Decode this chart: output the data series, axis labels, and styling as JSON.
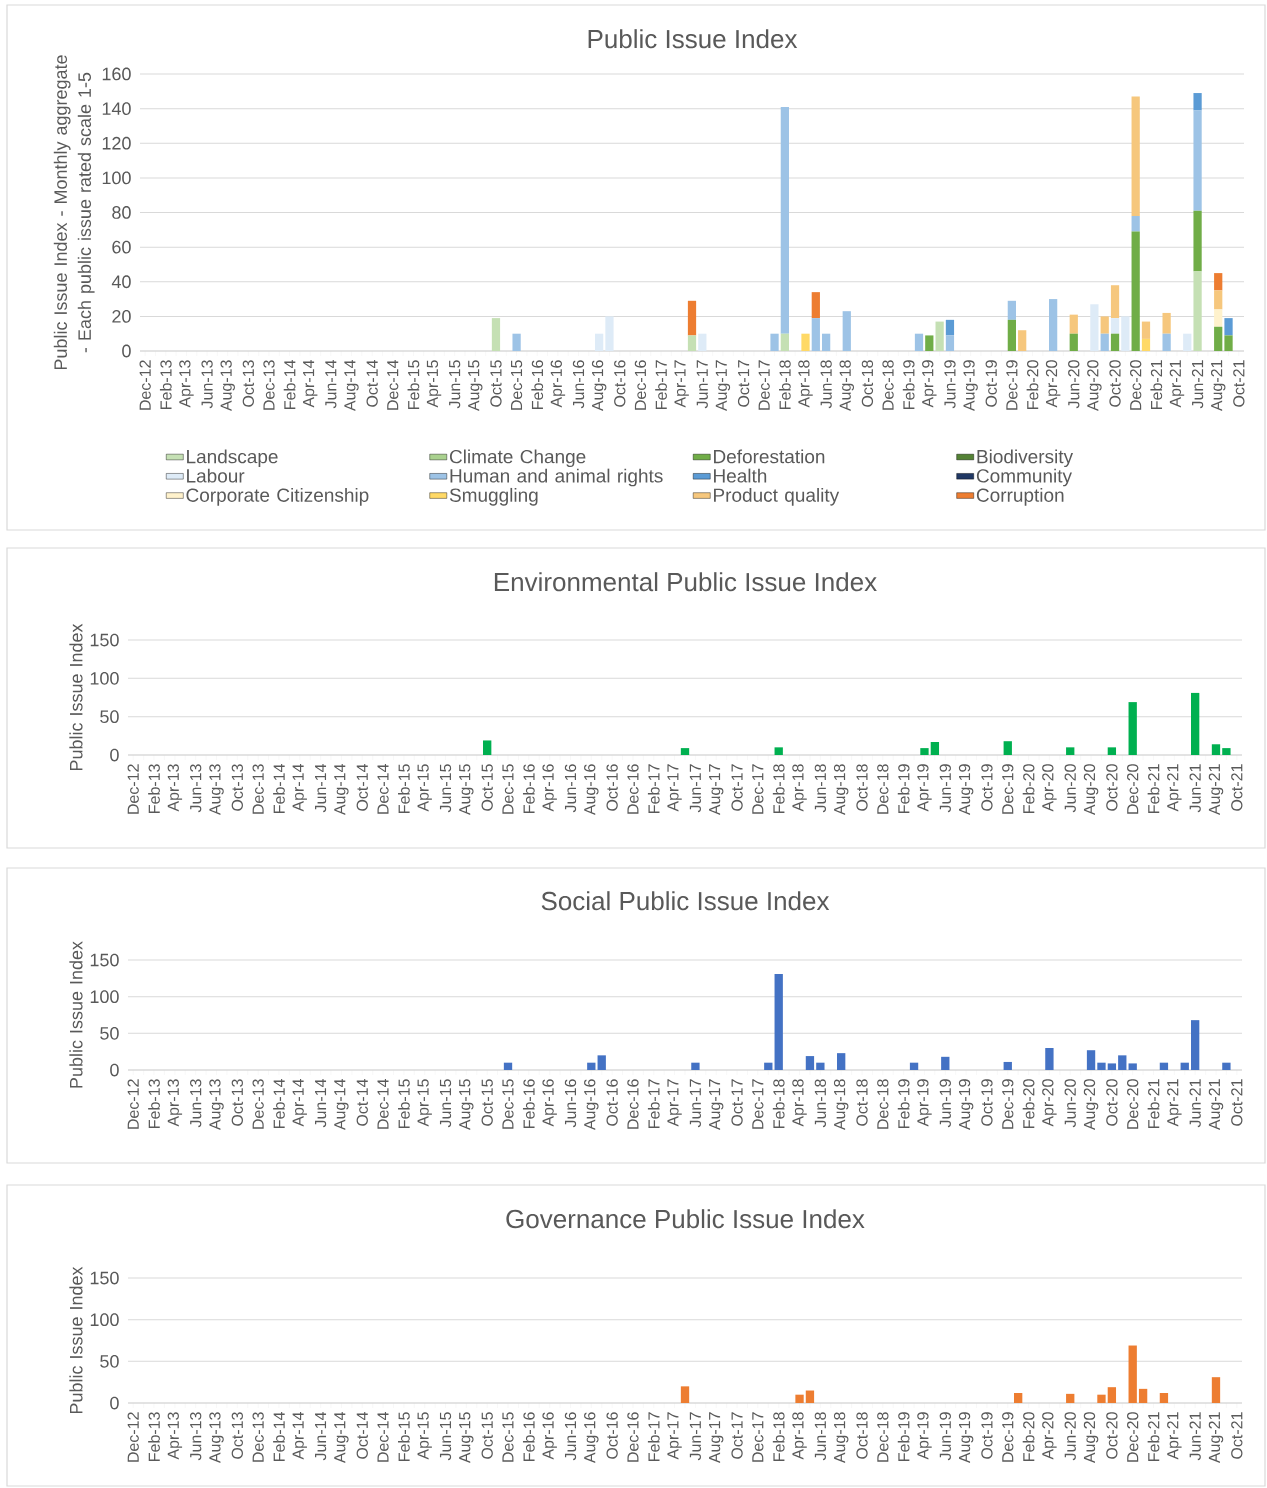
{
  "chart_data": [
    {
      "type": "bar",
      "title": "Public Issue Index",
      "ylabel": "Public Issue Index - Monthly aggregate - Each public issue rated scale 1-5",
      "stacked": true,
      "grid": "y",
      "legend": "bottom",
      "ylim": [
        0,
        160
      ],
      "yticks": [
        0,
        20,
        40,
        60,
        80,
        100,
        120,
        140,
        160
      ],
      "categories": [
        "Dec-12",
        null,
        "Feb-13",
        null,
        "Apr-13",
        null,
        "Jun-13",
        null,
        "Aug-13",
        null,
        "Oct-13",
        null,
        "Dec-13",
        null,
        "Feb-14",
        null,
        "Apr-14",
        null,
        "Jun-14",
        null,
        "Aug-14",
        null,
        "Oct-14",
        null,
        "Dec-14",
        null,
        "Feb-15",
        null,
        "Apr-15",
        null,
        "Jun-15",
        null,
        "Aug-15",
        null,
        "Oct-15",
        null,
        "Dec-15",
        null,
        "Feb-16",
        null,
        "Apr-16",
        null,
        "Jun-16",
        null,
        "Aug-16",
        null,
        "Oct-16",
        null,
        "Dec-16",
        null,
        "Feb-17",
        null,
        "Apr-17",
        null,
        "Jun-17",
        null,
        "Aug-17",
        null,
        "Oct-17",
        null,
        "Dec-17",
        null,
        "Feb-18",
        null,
        "Apr-18",
        null,
        "Jun-18",
        null,
        "Aug-18",
        null,
        "Oct-18",
        null,
        "Dec-18",
        null,
        "Feb-19",
        null,
        "Apr-19",
        null,
        "Jun-19",
        null,
        "Aug-19",
        null,
        "Oct-19",
        null,
        "Dec-19",
        null,
        "Feb-20",
        null,
        "Apr-20",
        null,
        "Jun-20",
        null,
        "Aug-20",
        null,
        "Oct-20",
        null,
        "Dec-20",
        null,
        "Feb-21",
        null,
        "Apr-21",
        null,
        "Jun-21",
        null,
        "Aug-21",
        null,
        "Oct-21"
      ],
      "series": [
        {
          "name": "Landscape",
          "color": "#c5e0b4",
          "values": [
            0,
            0,
            0,
            0,
            0,
            0,
            0,
            0,
            0,
            0,
            0,
            0,
            0,
            0,
            0,
            0,
            0,
            0,
            0,
            0,
            0,
            0,
            0,
            0,
            0,
            0,
            0,
            0,
            0,
            0,
            0,
            0,
            0,
            0,
            19,
            0,
            0,
            0,
            0,
            0,
            0,
            0,
            0,
            0,
            0,
            0,
            0,
            0,
            0,
            0,
            0,
            0,
            0,
            9,
            0,
            0,
            0,
            0,
            0,
            0,
            0,
            0,
            10,
            0,
            0,
            0,
            0,
            0,
            0,
            0,
            0,
            0,
            0,
            0,
            0,
            0,
            0,
            17,
            0,
            0,
            0,
            0,
            0,
            0,
            0,
            0,
            0,
            0,
            0,
            0,
            0,
            0,
            0,
            0,
            0,
            0,
            0,
            0,
            0,
            0,
            0,
            0,
            46,
            0,
            0,
            0,
            0
          ]
        },
        {
          "name": "Climate Change",
          "color": "#a9d18e",
          "values": [
            0,
            0,
            0,
            0,
            0,
            0,
            0,
            0,
            0,
            0,
            0,
            0,
            0,
            0,
            0,
            0,
            0,
            0,
            0,
            0,
            0,
            0,
            0,
            0,
            0,
            0,
            0,
            0,
            0,
            0,
            0,
            0,
            0,
            0,
            0,
            0,
            0,
            0,
            0,
            0,
            0,
            0,
            0,
            0,
            0,
            0,
            0,
            0,
            0,
            0,
            0,
            0,
            0,
            0,
            0,
            0,
            0,
            0,
            0,
            0,
            0,
            0,
            0,
            0,
            0,
            0,
            0,
            0,
            0,
            0,
            0,
            0,
            0,
            0,
            0,
            0,
            0,
            0,
            0,
            0,
            0,
            0,
            0,
            0,
            0,
            0,
            0,
            0,
            0,
            0,
            0,
            0,
            0,
            0,
            0,
            0,
            0,
            0,
            0,
            0,
            0,
            0,
            0,
            0,
            0,
            0,
            0
          ]
        },
        {
          "name": "Deforestation",
          "color": "#70ad47",
          "values": [
            0,
            0,
            0,
            0,
            0,
            0,
            0,
            0,
            0,
            0,
            0,
            0,
            0,
            0,
            0,
            0,
            0,
            0,
            0,
            0,
            0,
            0,
            0,
            0,
            0,
            0,
            0,
            0,
            0,
            0,
            0,
            0,
            0,
            0,
            0,
            0,
            0,
            0,
            0,
            0,
            0,
            0,
            0,
            0,
            0,
            0,
            0,
            0,
            0,
            0,
            0,
            0,
            0,
            0,
            0,
            0,
            0,
            0,
            0,
            0,
            0,
            0,
            0,
            0,
            0,
            0,
            0,
            0,
            0,
            0,
            0,
            0,
            0,
            0,
            0,
            0,
            9,
            0,
            0,
            0,
            0,
            0,
            0,
            0,
            18,
            0,
            0,
            0,
            0,
            0,
            10,
            0,
            0,
            0,
            10,
            0,
            69,
            0,
            0,
            0,
            0,
            0,
            35,
            0,
            14,
            9,
            0
          ]
        },
        {
          "name": "Biodiversity",
          "color": "#548235",
          "values": [
            0,
            0,
            0,
            0,
            0,
            0,
            0,
            0,
            0,
            0,
            0,
            0,
            0,
            0,
            0,
            0,
            0,
            0,
            0,
            0,
            0,
            0,
            0,
            0,
            0,
            0,
            0,
            0,
            0,
            0,
            0,
            0,
            0,
            0,
            0,
            0,
            0,
            0,
            0,
            0,
            0,
            0,
            0,
            0,
            0,
            0,
            0,
            0,
            0,
            0,
            0,
            0,
            0,
            0,
            0,
            0,
            0,
            0,
            0,
            0,
            0,
            0,
            0,
            0,
            0,
            0,
            0,
            0,
            0,
            0,
            0,
            0,
            0,
            0,
            0,
            0,
            0,
            0,
            0,
            0,
            0,
            0,
            0,
            0,
            0,
            0,
            0,
            0,
            0,
            0,
            0,
            0,
            0,
            0,
            0,
            0,
            0,
            0,
            0,
            0,
            0,
            0,
            0,
            0,
            0,
            0,
            0
          ]
        },
        {
          "name": "Labour",
          "color": "#deebf7",
          "values": [
            0,
            0,
            0,
            0,
            0,
            0,
            0,
            0,
            0,
            0,
            0,
            0,
            0,
            0,
            0,
            0,
            0,
            0,
            0,
            0,
            0,
            0,
            0,
            0,
            0,
            0,
            0,
            0,
            0,
            0,
            0,
            0,
            0,
            0,
            0,
            0,
            0,
            0,
            0,
            0,
            0,
            0,
            0,
            0,
            10,
            20,
            0,
            0,
            0,
            0,
            0,
            0,
            0,
            0,
            10,
            0,
            0,
            0,
            0,
            0,
            0,
            0,
            0,
            0,
            0,
            0,
            0,
            0,
            0,
            0,
            0,
            0,
            0,
            0,
            0,
            0,
            0,
            0,
            0,
            0,
            0,
            0,
            0,
            0,
            0,
            0,
            0,
            0,
            0,
            0,
            0,
            0,
            27,
            0,
            9,
            20,
            0,
            0,
            0,
            0,
            0,
            10,
            0,
            0,
            0,
            0,
            0
          ]
        },
        {
          "name": "Human and animal rights",
          "color": "#9dc3e6",
          "values": [
            0,
            0,
            0,
            0,
            0,
            0,
            0,
            0,
            0,
            0,
            0,
            0,
            0,
            0,
            0,
            0,
            0,
            0,
            0,
            0,
            0,
            0,
            0,
            0,
            0,
            0,
            0,
            0,
            0,
            0,
            0,
            0,
            0,
            0,
            0,
            0,
            10,
            0,
            0,
            0,
            0,
            0,
            0,
            0,
            0,
            0,
            0,
            0,
            0,
            0,
            0,
            0,
            0,
            0,
            0,
            0,
            0,
            0,
            0,
            0,
            0,
            10,
            131,
            0,
            0,
            19,
            10,
            0,
            23,
            0,
            0,
            0,
            0,
            0,
            0,
            10,
            0,
            0,
            9,
            0,
            0,
            0,
            0,
            0,
            11,
            0,
            0,
            0,
            30,
            0,
            0,
            0,
            0,
            10,
            0,
            0,
            9,
            0,
            0,
            10,
            0,
            0,
            58,
            0,
            0,
            0,
            0
          ]
        },
        {
          "name": "Health",
          "color": "#5b9bd5",
          "values": [
            0,
            0,
            0,
            0,
            0,
            0,
            0,
            0,
            0,
            0,
            0,
            0,
            0,
            0,
            0,
            0,
            0,
            0,
            0,
            0,
            0,
            0,
            0,
            0,
            0,
            0,
            0,
            0,
            0,
            0,
            0,
            0,
            0,
            0,
            0,
            0,
            0,
            0,
            0,
            0,
            0,
            0,
            0,
            0,
            0,
            0,
            0,
            0,
            0,
            0,
            0,
            0,
            0,
            0,
            0,
            0,
            0,
            0,
            0,
            0,
            0,
            0,
            0,
            0,
            0,
            0,
            0,
            0,
            0,
            0,
            0,
            0,
            0,
            0,
            0,
            0,
            0,
            0,
            9,
            0,
            0,
            0,
            0,
            0,
            0,
            0,
            0,
            0,
            0,
            0,
            0,
            0,
            0,
            0,
            0,
            0,
            0,
            0,
            0,
            0,
            0,
            0,
            10,
            0,
            0,
            10,
            0
          ]
        },
        {
          "name": "Community",
          "color": "#203864",
          "values": [
            0,
            0,
            0,
            0,
            0,
            0,
            0,
            0,
            0,
            0,
            0,
            0,
            0,
            0,
            0,
            0,
            0,
            0,
            0,
            0,
            0,
            0,
            0,
            0,
            0,
            0,
            0,
            0,
            0,
            0,
            0,
            0,
            0,
            0,
            0,
            0,
            0,
            0,
            0,
            0,
            0,
            0,
            0,
            0,
            0,
            0,
            0,
            0,
            0,
            0,
            0,
            0,
            0,
            0,
            0,
            0,
            0,
            0,
            0,
            0,
            0,
            0,
            0,
            0,
            0,
            0,
            0,
            0,
            0,
            0,
            0,
            0,
            0,
            0,
            0,
            0,
            0,
            0,
            0,
            0,
            0,
            0,
            0,
            0,
            0,
            0,
            0,
            0,
            0,
            0,
            0,
            0,
            0,
            0,
            0,
            0,
            0,
            0,
            0,
            0,
            0,
            0,
            0,
            0,
            0,
            0,
            0
          ]
        },
        {
          "name": "Corporate Citizenship",
          "color": "#fff2cc",
          "values": [
            0,
            0,
            0,
            0,
            0,
            0,
            0,
            0,
            0,
            0,
            0,
            0,
            0,
            0,
            0,
            0,
            0,
            0,
            0,
            0,
            0,
            0,
            0,
            0,
            0,
            0,
            0,
            0,
            0,
            0,
            0,
            0,
            0,
            0,
            0,
            0,
            0,
            0,
            0,
            0,
            0,
            0,
            0,
            0,
            0,
            0,
            0,
            0,
            0,
            0,
            0,
            0,
            0,
            0,
            0,
            0,
            0,
            0,
            0,
            0,
            0,
            0,
            0,
            0,
            0,
            0,
            0,
            0,
            0,
            0,
            0,
            0,
            0,
            0,
            0,
            0,
            0,
            0,
            0,
            0,
            0,
            0,
            0,
            0,
            0,
            0,
            0,
            0,
            0,
            0,
            0,
            0,
            0,
            0,
            0,
            0,
            0,
            0,
            0,
            0,
            0,
            0,
            0,
            0,
            10,
            0,
            0
          ]
        },
        {
          "name": "Smuggling",
          "color": "#ffd966",
          "values": [
            0,
            0,
            0,
            0,
            0,
            0,
            0,
            0,
            0,
            0,
            0,
            0,
            0,
            0,
            0,
            0,
            0,
            0,
            0,
            0,
            0,
            0,
            0,
            0,
            0,
            0,
            0,
            0,
            0,
            0,
            0,
            0,
            0,
            0,
            0,
            0,
            0,
            0,
            0,
            0,
            0,
            0,
            0,
            0,
            0,
            0,
            0,
            0,
            0,
            0,
            0,
            0,
            0,
            0,
            0,
            0,
            0,
            0,
            0,
            0,
            0,
            0,
            0,
            0,
            10,
            0,
            0,
            0,
            0,
            0,
            0,
            0,
            0,
            0,
            0,
            0,
            0,
            0,
            0,
            0,
            0,
            0,
            0,
            0,
            0,
            0,
            0,
            0,
            0,
            0,
            0,
            0,
            0,
            0,
            0,
            0,
            0,
            7,
            0,
            0,
            0,
            0,
            0,
            0,
            0,
            0,
            0
          ]
        },
        {
          "name": "Product quality",
          "color": "#f6c77d",
          "values": [
            0,
            0,
            0,
            0,
            0,
            0,
            0,
            0,
            0,
            0,
            0,
            0,
            0,
            0,
            0,
            0,
            0,
            0,
            0,
            0,
            0,
            0,
            0,
            0,
            0,
            0,
            0,
            0,
            0,
            0,
            0,
            0,
            0,
            0,
            0,
            0,
            0,
            0,
            0,
            0,
            0,
            0,
            0,
            0,
            0,
            0,
            0,
            0,
            0,
            0,
            0,
            0,
            0,
            0,
            0,
            0,
            0,
            0,
            0,
            0,
            0,
            0,
            0,
            0,
            0,
            0,
            0,
            0,
            0,
            0,
            0,
            0,
            0,
            0,
            0,
            0,
            0,
            0,
            0,
            0,
            0,
            0,
            0,
            0,
            0,
            12,
            0,
            0,
            0,
            0,
            11,
            0,
            0,
            10,
            19,
            0,
            69,
            10,
            0,
            12,
            0,
            0,
            0,
            0,
            11,
            0,
            0
          ]
        },
        {
          "name": "Corruption",
          "color": "#ed7d31",
          "values": [
            0,
            0,
            0,
            0,
            0,
            0,
            0,
            0,
            0,
            0,
            0,
            0,
            0,
            0,
            0,
            0,
            0,
            0,
            0,
            0,
            0,
            0,
            0,
            0,
            0,
            0,
            0,
            0,
            0,
            0,
            0,
            0,
            0,
            0,
            0,
            0,
            0,
            0,
            0,
            0,
            0,
            0,
            0,
            0,
            0,
            0,
            0,
            0,
            0,
            0,
            0,
            0,
            0,
            20,
            0,
            0,
            0,
            0,
            0,
            0,
            0,
            0,
            0,
            0,
            0,
            15,
            0,
            0,
            0,
            0,
            0,
            0,
            0,
            0,
            0,
            0,
            0,
            0,
            0,
            0,
            0,
            0,
            0,
            0,
            0,
            0,
            0,
            0,
            0,
            0,
            0,
            0,
            0,
            0,
            0,
            0,
            0,
            0,
            0,
            0,
            0,
            0,
            0,
            0,
            10,
            0,
            0
          ]
        }
      ]
    },
    {
      "type": "bar",
      "title": "Environmental Public Issue Index",
      "ylabel": "Public Issue Index",
      "grid": "y",
      "ylim": [
        0,
        150
      ],
      "yticks": [
        0,
        50,
        100,
        150
      ],
      "color": "#00b050",
      "categories": [
        "Dec-12",
        null,
        "Feb-13",
        null,
        "Apr-13",
        null,
        "Jun-13",
        null,
        "Aug-13",
        null,
        "Oct-13",
        null,
        "Dec-13",
        null,
        "Feb-14",
        null,
        "Apr-14",
        null,
        "Jun-14",
        null,
        "Aug-14",
        null,
        "Oct-14",
        null,
        "Dec-14",
        null,
        "Feb-15",
        null,
        "Apr-15",
        null,
        "Jun-15",
        null,
        "Aug-15",
        null,
        "Oct-15",
        null,
        "Dec-15",
        null,
        "Feb-16",
        null,
        "Apr-16",
        null,
        "Jun-16",
        null,
        "Aug-16",
        null,
        "Oct-16",
        null,
        "Dec-16",
        null,
        "Feb-17",
        null,
        "Apr-17",
        null,
        "Jun-17",
        null,
        "Aug-17",
        null,
        "Oct-17",
        null,
        "Dec-17",
        null,
        "Feb-18",
        null,
        "Apr-18",
        null,
        "Jun-18",
        null,
        "Aug-18",
        null,
        "Oct-18",
        null,
        "Dec-18",
        null,
        "Feb-19",
        null,
        "Apr-19",
        null,
        "Jun-19",
        null,
        "Aug-19",
        null,
        "Oct-19",
        null,
        "Dec-19",
        null,
        "Feb-20",
        null,
        "Apr-20",
        null,
        "Jun-20",
        null,
        "Aug-20",
        null,
        "Oct-20",
        null,
        "Dec-20",
        null,
        "Feb-21",
        null,
        "Apr-21",
        null,
        "Jun-21",
        null,
        "Aug-21",
        null,
        "Oct-21"
      ],
      "values": [
        0,
        0,
        0,
        0,
        0,
        0,
        0,
        0,
        0,
        0,
        0,
        0,
        0,
        0,
        0,
        0,
        0,
        0,
        0,
        0,
        0,
        0,
        0,
        0,
        0,
        0,
        0,
        0,
        0,
        0,
        0,
        0,
        0,
        0,
        19,
        0,
        0,
        0,
        0,
        0,
        0,
        0,
        0,
        0,
        0,
        0,
        0,
        0,
        0,
        0,
        0,
        0,
        0,
        9,
        0,
        0,
        0,
        0,
        0,
        0,
        0,
        0,
        10,
        0,
        0,
        0,
        0,
        0,
        0,
        0,
        0,
        0,
        0,
        0,
        0,
        0,
        9,
        17,
        0,
        0,
        0,
        0,
        0,
        0,
        18,
        0,
        0,
        0,
        0,
        0,
        10,
        0,
        0,
        0,
        10,
        0,
        69,
        0,
        0,
        0,
        0,
        0,
        81,
        0,
        14,
        9,
        0
      ]
    },
    {
      "type": "bar",
      "title": "Social Public Issue Index",
      "ylabel": "Public Issue Index",
      "grid": "y",
      "ylim": [
        0,
        150
      ],
      "yticks": [
        0,
        50,
        100,
        150
      ],
      "color": "#4472c4",
      "categories": [
        "Dec-12",
        null,
        "Feb-13",
        null,
        "Apr-13",
        null,
        "Jun-13",
        null,
        "Aug-13",
        null,
        "Oct-13",
        null,
        "Dec-13",
        null,
        "Feb-14",
        null,
        "Apr-14",
        null,
        "Jun-14",
        null,
        "Aug-14",
        null,
        "Oct-14",
        null,
        "Dec-14",
        null,
        "Feb-15",
        null,
        "Apr-15",
        null,
        "Jun-15",
        null,
        "Aug-15",
        null,
        "Oct-15",
        null,
        "Dec-15",
        null,
        "Feb-16",
        null,
        "Apr-16",
        null,
        "Jun-16",
        null,
        "Aug-16",
        null,
        "Oct-16",
        null,
        "Dec-16",
        null,
        "Feb-17",
        null,
        "Apr-17",
        null,
        "Jun-17",
        null,
        "Aug-17",
        null,
        "Oct-17",
        null,
        "Dec-17",
        null,
        "Feb-18",
        null,
        "Apr-18",
        null,
        "Jun-18",
        null,
        "Aug-18",
        null,
        "Oct-18",
        null,
        "Dec-18",
        null,
        "Feb-19",
        null,
        "Apr-19",
        null,
        "Jun-19",
        null,
        "Aug-19",
        null,
        "Oct-19",
        null,
        "Dec-19",
        null,
        "Feb-20",
        null,
        "Apr-20",
        null,
        "Jun-20",
        null,
        "Aug-20",
        null,
        "Oct-20",
        null,
        "Dec-20",
        null,
        "Feb-21",
        null,
        "Apr-21",
        null,
        "Jun-21",
        null,
        "Aug-21",
        null,
        "Oct-21"
      ],
      "values": [
        0,
        0,
        0,
        0,
        0,
        0,
        0,
        0,
        0,
        0,
        0,
        0,
        0,
        0,
        0,
        0,
        0,
        0,
        0,
        0,
        0,
        0,
        0,
        0,
        0,
        0,
        0,
        0,
        0,
        0,
        0,
        0,
        0,
        0,
        0,
        0,
        10,
        0,
        0,
        0,
        0,
        0,
        0,
        0,
        10,
        20,
        0,
        0,
        0,
        0,
        0,
        0,
        0,
        0,
        10,
        0,
        0,
        0,
        0,
        0,
        0,
        10,
        131,
        0,
        0,
        19,
        10,
        0,
        23,
        0,
        0,
        0,
        0,
        0,
        0,
        10,
        0,
        0,
        18,
        0,
        0,
        0,
        0,
        0,
        11,
        0,
        0,
        0,
        30,
        0,
        0,
        0,
        27,
        10,
        9,
        20,
        9,
        0,
        0,
        10,
        0,
        10,
        68,
        0,
        0,
        10,
        0
      ]
    },
    {
      "type": "bar",
      "title": "Governance Public Issue Index",
      "ylabel": "Public Issue Index",
      "grid": "y",
      "ylim": [
        0,
        150
      ],
      "yticks": [
        0,
        50,
        100,
        150
      ],
      "color": "#ed7d31",
      "categories": [
        "Dec-12",
        null,
        "Feb-13",
        null,
        "Apr-13",
        null,
        "Jun-13",
        null,
        "Aug-13",
        null,
        "Oct-13",
        null,
        "Dec-13",
        null,
        "Feb-14",
        null,
        "Apr-14",
        null,
        "Jun-14",
        null,
        "Aug-14",
        null,
        "Oct-14",
        null,
        "Dec-14",
        null,
        "Feb-15",
        null,
        "Apr-15",
        null,
        "Jun-15",
        null,
        "Aug-15",
        null,
        "Oct-15",
        null,
        "Dec-15",
        null,
        "Feb-16",
        null,
        "Apr-16",
        null,
        "Jun-16",
        null,
        "Aug-16",
        null,
        "Oct-16",
        null,
        "Dec-16",
        null,
        "Feb-17",
        null,
        "Apr-17",
        null,
        "Jun-17",
        null,
        "Aug-17",
        null,
        "Oct-17",
        null,
        "Dec-17",
        null,
        "Feb-18",
        null,
        "Apr-18",
        null,
        "Jun-18",
        null,
        "Aug-18",
        null,
        "Oct-18",
        null,
        "Dec-18",
        null,
        "Feb-19",
        null,
        "Apr-19",
        null,
        "Jun-19",
        null,
        "Aug-19",
        null,
        "Oct-19",
        null,
        "Dec-19",
        null,
        "Feb-20",
        null,
        "Apr-20",
        null,
        "Jun-20",
        null,
        "Aug-20",
        null,
        "Oct-20",
        null,
        "Dec-20",
        null,
        "Feb-21",
        null,
        "Apr-21",
        null,
        "Jun-21",
        null,
        "Aug-21",
        null,
        "Oct-21"
      ],
      "values": [
        0,
        0,
        0,
        0,
        0,
        0,
        0,
        0,
        0,
        0,
        0,
        0,
        0,
        0,
        0,
        0,
        0,
        0,
        0,
        0,
        0,
        0,
        0,
        0,
        0,
        0,
        0,
        0,
        0,
        0,
        0,
        0,
        0,
        0,
        0,
        0,
        0,
        0,
        0,
        0,
        0,
        0,
        0,
        0,
        0,
        0,
        0,
        0,
        0,
        0,
        0,
        0,
        0,
        20,
        0,
        0,
        0,
        0,
        0,
        0,
        0,
        0,
        0,
        0,
        10,
        15,
        0,
        0,
        0,
        0,
        0,
        0,
        0,
        0,
        0,
        0,
        0,
        0,
        0,
        0,
        0,
        0,
        0,
        0,
        0,
        12,
        0,
        0,
        0,
        0,
        11,
        0,
        0,
        10,
        19,
        0,
        69,
        17,
        0,
        12,
        0,
        0,
        0,
        0,
        31,
        0,
        0
      ]
    }
  ]
}
